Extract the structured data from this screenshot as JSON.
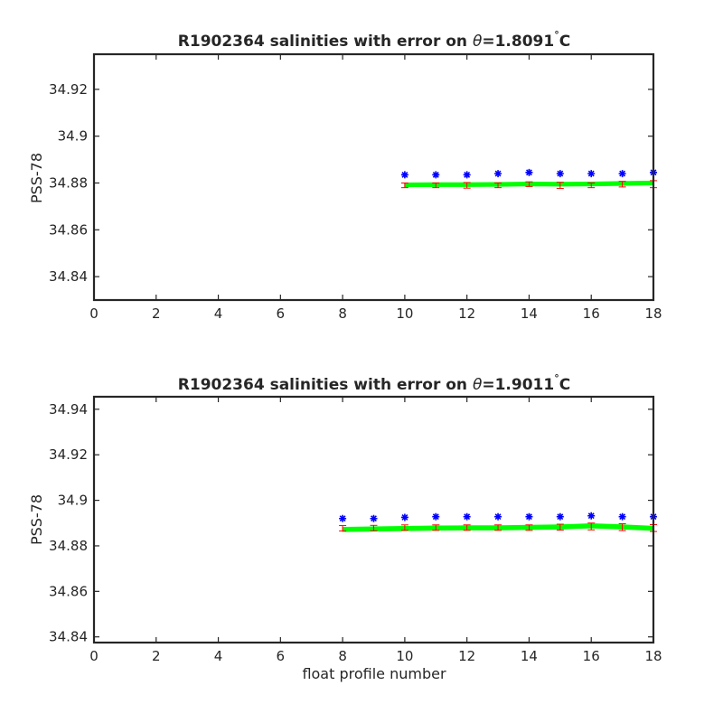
{
  "figure": {
    "xlabel": "float profile number"
  },
  "chart_data": [
    {
      "type": "scatter",
      "title_prefix": "R1902364 salinities with error on ",
      "title_symbol": "θ",
      "title_value": "=1.8091",
      "title_degree": "°",
      "title_unit": "C",
      "xlabel": "",
      "ylabel": "PSS-78",
      "xlim": [
        0,
        18
      ],
      "ylim": [
        34.83,
        34.935
      ],
      "xticks": [
        0,
        2,
        4,
        6,
        8,
        10,
        12,
        14,
        16,
        18
      ],
      "xtick_labels": [
        "0",
        "2",
        "4",
        "6",
        "8",
        "10",
        "12",
        "14",
        "16",
        "18"
      ],
      "yticks": [
        34.84,
        34.86,
        34.88,
        34.9,
        34.92
      ],
      "ytick_labels": [
        "34.84",
        "34.86",
        "34.88",
        "34.9",
        "34.92"
      ],
      "grid": false,
      "series": [
        {
          "marker": "asterisk",
          "color": "#0000ff",
          "x": [
            10,
            11,
            12,
            13,
            14,
            15,
            16,
            17,
            18
          ],
          "values": [
            34.8835,
            34.8835,
            34.8835,
            34.884,
            34.8845,
            34.884,
            34.884,
            34.884,
            34.8845
          ]
        },
        {
          "marker": "errorbar",
          "color": "#ff0000",
          "x": [
            10,
            11,
            12,
            13,
            14,
            15,
            16,
            17,
            18
          ],
          "values": [
            34.879,
            34.879,
            34.879,
            34.879,
            34.8795,
            34.879,
            34.879,
            34.8795,
            34.8795
          ],
          "errors": [
            0.001,
            0.001,
            0.0012,
            0.001,
            0.001,
            0.0013,
            0.001,
            0.0012,
            0.0015
          ]
        },
        {
          "marker": "band",
          "color": "#00ff00",
          "x": [
            10,
            11,
            12,
            13,
            14,
            15,
            16,
            17,
            18
          ],
          "values": [
            34.8792,
            34.8793,
            34.8793,
            34.8794,
            34.8796,
            34.8795,
            34.8796,
            34.8798,
            34.88
          ],
          "halfwidth": 0.0008
        }
      ]
    },
    {
      "type": "scatter",
      "title_prefix": "R1902364 salinities with error on ",
      "title_symbol": "θ",
      "title_value": "=1.9011",
      "title_degree": "°",
      "title_unit": "C",
      "xlabel": "float profile number",
      "ylabel": "PSS-78",
      "xlim": [
        0,
        18
      ],
      "ylim": [
        34.8375,
        34.9455
      ],
      "xticks": [
        0,
        2,
        4,
        6,
        8,
        10,
        12,
        14,
        16,
        18
      ],
      "xtick_labels": [
        "0",
        "2",
        "4",
        "6",
        "8",
        "10",
        "12",
        "14",
        "16",
        "18"
      ],
      "yticks": [
        34.84,
        34.86,
        34.88,
        34.9,
        34.92,
        34.94
      ],
      "ytick_labels": [
        "34.84",
        "34.86",
        "34.88",
        "34.9",
        "34.92",
        "34.94"
      ],
      "grid": false,
      "series": [
        {
          "marker": "asterisk",
          "color": "#0000ff",
          "x": [
            8,
            9,
            10,
            11,
            12,
            13,
            14,
            15,
            16,
            17,
            18
          ],
          "values": [
            34.892,
            34.892,
            34.8925,
            34.8928,
            34.8928,
            34.8928,
            34.8928,
            34.8928,
            34.8932,
            34.8928,
            34.8928
          ]
        },
        {
          "marker": "errorbar",
          "color": "#ff0000",
          "x": [
            8,
            9,
            10,
            11,
            12,
            13,
            14,
            15,
            16,
            17,
            18
          ],
          "values": [
            34.8877,
            34.8878,
            34.888,
            34.888,
            34.888,
            34.888,
            34.888,
            34.8882,
            34.8885,
            34.8882,
            34.8878
          ],
          "errors": [
            0.0012,
            0.0012,
            0.0012,
            0.0012,
            0.0012,
            0.0012,
            0.0012,
            0.0013,
            0.0015,
            0.0015,
            0.0015
          ]
        },
        {
          "marker": "band",
          "color": "#00ff00",
          "x": [
            8,
            9,
            10,
            11,
            12,
            13,
            14,
            15,
            16,
            17,
            18
          ],
          "values": [
            34.8872,
            34.8874,
            34.8876,
            34.8878,
            34.8879,
            34.8879,
            34.8881,
            34.8883,
            34.8888,
            34.8883,
            34.8877
          ],
          "halfwidth": 0.0009
        }
      ]
    }
  ]
}
